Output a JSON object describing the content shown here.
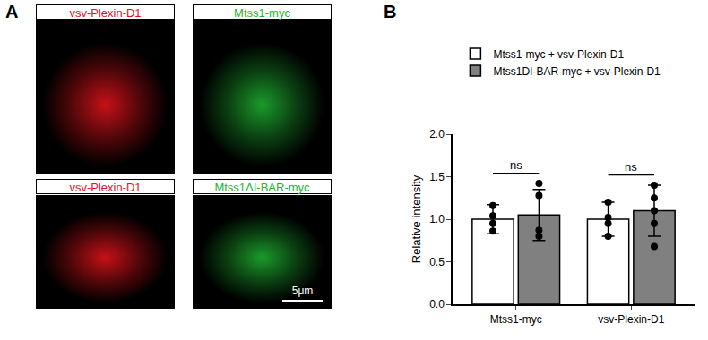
{
  "panels": {
    "A": {
      "letter": "A",
      "images": [
        {
          "label": "vsv-Plexin-D1",
          "color": "#e8141c"
        },
        {
          "label": "Mtss1-myc",
          "color": "#1fb532"
        },
        {
          "label": "vsv-Plexin-D1",
          "color": "#e8141c"
        },
        {
          "label": "Mtss1ΔI-BAR-myc",
          "color": "#1fb532"
        }
      ],
      "scale_bar": "5μm"
    },
    "B": {
      "letter": "B"
    }
  },
  "chart_data": {
    "type": "bar",
    "categories": [
      "Mtss1-myc",
      "vsv-Plexin-D1"
    ],
    "series": [
      {
        "name": "Mtss1-myc + vsv-Plexin-D1",
        "color": "#ffffff",
        "values": [
          1.0,
          1.0
        ],
        "errors": [
          0.17,
          0.2
        ],
        "points": [
          [
            1.16,
            1.04,
            0.95,
            0.86
          ],
          [
            1.2,
            1.02,
            0.95,
            0.8
          ]
        ]
      },
      {
        "name": "Mtss1DI-BAR-myc + vsv-Plexin-D1",
        "color": "#808080",
        "values": [
          1.05,
          1.1
        ],
        "errors": [
          0.3,
          0.3
        ],
        "points": [
          [
            1.42,
            1.28,
            0.87,
            0.8
          ],
          [
            1.4,
            1.25,
            1.1,
            0.95,
            0.68
          ]
        ]
      }
    ],
    "y_label": "Relative intensity",
    "ylim": [
      0,
      2.0
    ],
    "yticks": [
      {
        "value": 0,
        "label": "0.0"
      },
      {
        "value": 0.5,
        "label": "0.5"
      },
      {
        "value": 1.0,
        "label": "1.0"
      },
      {
        "value": 1.5,
        "label": "1.5"
      },
      {
        "value": 2.0,
        "label": "2.0"
      }
    ],
    "grid": false,
    "legend": "top",
    "annotations": [
      {
        "category": "Mtss1-myc",
        "text": "ns"
      },
      {
        "category": "vsv-Plexin-D1",
        "text": "ns"
      }
    ]
  }
}
